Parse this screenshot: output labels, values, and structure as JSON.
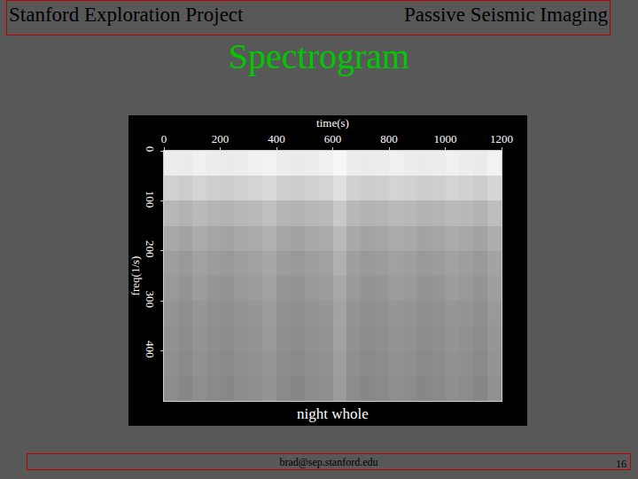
{
  "slide": {
    "header_left": "Stanford Exploration Project",
    "header_right": "Passive Seismic Imaging",
    "title": "Spectrogram",
    "footer": "brad@sep.stanford.edu",
    "page": "16"
  },
  "chart_data": {
    "type": "heatmap",
    "title": "night whole",
    "x_label": "time(s)",
    "y_label": "freq(1/s)",
    "x": [
      25,
      75,
      125,
      175,
      225,
      275,
      325,
      375,
      425,
      475,
      525,
      575,
      625,
      675,
      725,
      775,
      825,
      875,
      925,
      975,
      1025,
      1075,
      1125,
      1175
    ],
    "y": [
      25,
      75,
      125,
      175,
      225,
      275,
      325,
      375,
      425,
      475
    ],
    "z": [
      [
        0.93,
        0.92,
        0.94,
        0.93,
        0.92,
        0.93,
        0.94,
        0.95,
        0.93,
        0.92,
        0.93,
        0.94,
        0.97,
        0.93,
        0.92,
        0.93,
        0.94,
        0.93,
        0.92,
        0.93,
        0.94,
        0.93,
        0.92,
        0.95
      ],
      [
        0.82,
        0.8,
        0.83,
        0.81,
        0.8,
        0.82,
        0.83,
        0.85,
        0.81,
        0.8,
        0.82,
        0.83,
        0.88,
        0.82,
        0.8,
        0.81,
        0.83,
        0.82,
        0.8,
        0.81,
        0.83,
        0.82,
        0.8,
        0.84
      ],
      [
        0.72,
        0.7,
        0.73,
        0.71,
        0.7,
        0.72,
        0.73,
        0.75,
        0.71,
        0.7,
        0.72,
        0.73,
        0.79,
        0.72,
        0.7,
        0.71,
        0.73,
        0.72,
        0.7,
        0.71,
        0.73,
        0.72,
        0.7,
        0.74
      ],
      [
        0.66,
        0.64,
        0.67,
        0.65,
        0.64,
        0.66,
        0.67,
        0.69,
        0.65,
        0.64,
        0.66,
        0.67,
        0.73,
        0.66,
        0.64,
        0.65,
        0.67,
        0.66,
        0.64,
        0.65,
        0.67,
        0.66,
        0.64,
        0.68
      ],
      [
        0.62,
        0.6,
        0.63,
        0.61,
        0.6,
        0.62,
        0.63,
        0.65,
        0.61,
        0.6,
        0.62,
        0.63,
        0.69,
        0.62,
        0.6,
        0.61,
        0.63,
        0.62,
        0.6,
        0.61,
        0.63,
        0.62,
        0.6,
        0.64
      ],
      [
        0.6,
        0.58,
        0.61,
        0.59,
        0.58,
        0.6,
        0.61,
        0.63,
        0.59,
        0.58,
        0.6,
        0.61,
        0.66,
        0.6,
        0.58,
        0.59,
        0.61,
        0.6,
        0.58,
        0.59,
        0.61,
        0.6,
        0.58,
        0.62
      ],
      [
        0.58,
        0.56,
        0.59,
        0.57,
        0.56,
        0.58,
        0.59,
        0.61,
        0.57,
        0.56,
        0.58,
        0.59,
        0.64,
        0.58,
        0.56,
        0.57,
        0.59,
        0.58,
        0.56,
        0.57,
        0.59,
        0.58,
        0.56,
        0.6
      ],
      [
        0.57,
        0.55,
        0.58,
        0.56,
        0.55,
        0.57,
        0.58,
        0.6,
        0.56,
        0.55,
        0.57,
        0.58,
        0.63,
        0.57,
        0.55,
        0.56,
        0.58,
        0.57,
        0.55,
        0.56,
        0.58,
        0.57,
        0.55,
        0.59
      ],
      [
        0.56,
        0.54,
        0.57,
        0.55,
        0.54,
        0.56,
        0.57,
        0.59,
        0.55,
        0.54,
        0.56,
        0.57,
        0.62,
        0.56,
        0.54,
        0.55,
        0.57,
        0.56,
        0.54,
        0.55,
        0.57,
        0.56,
        0.54,
        0.58
      ],
      [
        0.55,
        0.53,
        0.56,
        0.54,
        0.53,
        0.55,
        0.56,
        0.58,
        0.54,
        0.53,
        0.55,
        0.56,
        0.61,
        0.55,
        0.53,
        0.54,
        0.56,
        0.55,
        0.53,
        0.54,
        0.56,
        0.55,
        0.53,
        0.57
      ]
    ],
    "zlim": [
      0,
      1
    ],
    "xlim": [
      0,
      1200
    ],
    "xticks": [
      0,
      200,
      400,
      600,
      800,
      1000,
      1200
    ],
    "ylim": [
      0,
      500
    ],
    "yticks": [
      0,
      100,
      200,
      300,
      400
    ],
    "grid": false
  }
}
